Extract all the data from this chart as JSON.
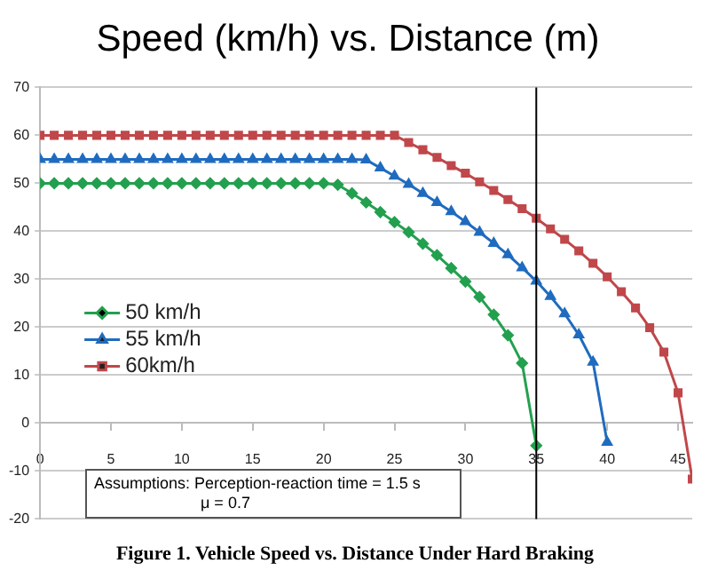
{
  "chart_data": {
    "type": "line",
    "title": "Speed (km/h) vs. Distance (m)",
    "x": [
      0,
      1,
      2,
      3,
      4,
      5,
      6,
      7,
      8,
      9,
      10,
      11,
      12,
      13,
      14,
      15,
      16,
      17,
      18,
      19,
      20,
      21,
      22,
      23,
      24,
      25,
      26,
      27,
      28,
      29,
      30,
      31,
      32,
      33,
      34,
      35,
      36,
      37,
      38,
      39,
      40,
      41,
      42,
      43,
      44,
      45,
      46
    ],
    "series": [
      {
        "name": "50 km/h",
        "color": "#23a04f",
        "marker": "diamond",
        "x": [
          0,
          1,
          2,
          3,
          4,
          5,
          6,
          7,
          8,
          9,
          10,
          11,
          12,
          13,
          14,
          15,
          16,
          17,
          18,
          19,
          20,
          21,
          22,
          23,
          24,
          25,
          26,
          27,
          28,
          29,
          30,
          31,
          32,
          33,
          34,
          35
        ],
        "values": [
          50,
          50,
          50,
          50,
          50,
          50,
          50,
          50,
          50,
          50,
          50,
          50,
          50,
          50,
          50,
          50,
          50,
          50,
          50,
          50,
          50,
          49.7,
          47.9,
          46.0,
          44.0,
          41.9,
          39.8,
          37.4,
          35.0,
          32.3,
          29.5,
          26.3,
          22.6,
          18.3,
          12.5,
          -4.7
        ]
      },
      {
        "name": "55 km/h",
        "color": "#1f6bbf",
        "marker": "triangle",
        "x": [
          0,
          1,
          2,
          3,
          4,
          5,
          6,
          7,
          8,
          9,
          10,
          11,
          12,
          13,
          14,
          15,
          16,
          17,
          18,
          19,
          20,
          21,
          22,
          23,
          24,
          25,
          26,
          27,
          28,
          29,
          30,
          31,
          32,
          33,
          34,
          35,
          36,
          37,
          38,
          39,
          40
        ],
        "values": [
          55,
          55,
          55,
          55,
          55,
          55,
          55,
          55,
          55,
          55,
          55,
          55,
          55,
          55,
          55,
          55,
          55,
          55,
          55,
          55,
          55,
          55,
          55,
          54.9,
          53.2,
          51.5,
          49.8,
          47.9,
          46.0,
          44.1,
          42.0,
          39.8,
          37.5,
          35.1,
          32.4,
          29.6,
          26.4,
          22.8,
          18.4,
          12.7,
          -4.0
        ]
      },
      {
        "name": "60km/h",
        "color": "#c0474a",
        "marker": "square",
        "values": [
          60,
          60,
          60,
          60,
          60,
          60,
          60,
          60,
          60,
          60,
          60,
          60,
          60,
          60,
          60,
          60,
          60,
          60,
          60,
          60,
          60,
          60,
          60,
          60,
          60,
          60,
          58.5,
          57.0,
          55.4,
          53.7,
          52.1,
          50.3,
          48.5,
          46.6,
          44.7,
          42.7,
          40.5,
          38.3,
          35.9,
          33.3,
          30.5,
          27.4,
          24.0,
          19.9,
          14.8,
          6.3,
          -11.7
        ]
      }
    ],
    "xlim": [
      0,
      46
    ],
    "xticks": [
      0,
      5,
      10,
      15,
      20,
      25,
      30,
      35,
      40,
      45
    ],
    "ylim": [
      -20,
      70
    ],
    "yticks": [
      -20,
      -10,
      0,
      10,
      20,
      30,
      40,
      50,
      60,
      70
    ],
    "grid": "y",
    "legend": "left",
    "ref_lines": [
      {
        "axis": "x",
        "value": 35,
        "color": "#000000"
      }
    ],
    "annotations": [
      "Assumptions:  Perception-reaction time = 1.5 s",
      "μ = 0.7",
      "Figure 1.  Vehicle Speed vs. Distance Under Hard Braking"
    ]
  }
}
